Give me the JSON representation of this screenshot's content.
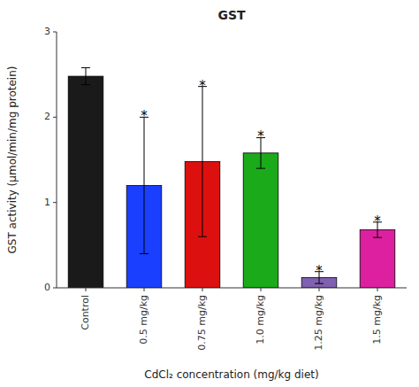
{
  "chart_data": {
    "type": "bar",
    "title": "GST",
    "xlabel": "CdCl₂ concentration (mg/kg diet)",
    "ylabel": "GST activity (μmol/min/mg protein)",
    "categories": [
      "Control",
      "0.5 mg/kg",
      "0.75 mg/kg",
      "1.0 mg/kg",
      "1.25 mg/kg",
      "1.5 mg/kg"
    ],
    "values": [
      2.48,
      1.2,
      1.48,
      1.58,
      0.12,
      0.68
    ],
    "errors": [
      0.1,
      0.8,
      0.88,
      0.18,
      0.07,
      0.09
    ],
    "colors": [
      "#1a1a1a",
      "#1a3fff",
      "#dd1010",
      "#1aaa1a",
      "#8060b0",
      "#dd20a0"
    ],
    "annotations": [
      {
        "category": "0.5 mg/kg",
        "text": "*"
      },
      {
        "category": "0.75 mg/kg",
        "text": "*"
      },
      {
        "category": "1.0 mg/kg",
        "text": "*"
      },
      {
        "category": "1.25 mg/kg",
        "text": "*"
      },
      {
        "category": "1.5 mg/kg",
        "text": "*"
      }
    ],
    "ylim": [
      0,
      3
    ],
    "yticks": [
      0,
      1,
      2,
      3
    ],
    "grid": false
  }
}
